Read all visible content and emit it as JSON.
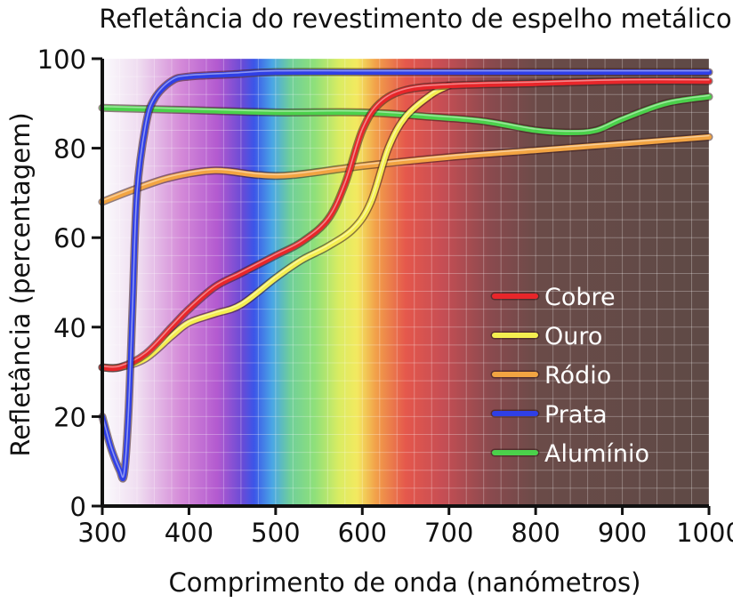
{
  "chart_data": {
    "type": "line",
    "title": "Refletância do revestimento de espelho metálico",
    "xlabel": "Comprimento de onda (nanómetros)",
    "ylabel": "Refletância (percentagem)",
    "xlim": [
      300,
      1000
    ],
    "ylim": [
      0,
      100
    ],
    "xticks": [
      "300",
      "400",
      "500",
      "600",
      "700",
      "800",
      "900",
      "1000"
    ],
    "yticks": [
      "0",
      "20",
      "40",
      "60",
      "80",
      "100"
    ],
    "grid": true,
    "legend_position": "bottom-right",
    "background": "visible light spectrum (violet to red) then dark brown for infrared",
    "series": [
      {
        "name": "Cobre",
        "color": "#e8262a",
        "x": [
          300,
          320,
          350,
          380,
          400,
          430,
          460,
          500,
          530,
          560,
          580,
          600,
          620,
          650,
          700,
          800,
          900,
          1000
        ],
        "y": [
          31,
          31,
          34,
          40,
          44,
          49,
          52,
          56,
          59,
          64,
          72,
          84,
          90,
          93,
          94,
          94.5,
          95,
          95
        ]
      },
      {
        "name": "Ouro",
        "color": "#f4ee50",
        "x": [
          300,
          320,
          350,
          380,
          400,
          430,
          460,
          500,
          530,
          560,
          590,
          610,
          630,
          650,
          680,
          700
        ],
        "y": [
          31,
          31,
          33,
          38,
          41,
          43,
          45,
          51,
          55,
          58,
          62,
          68,
          80,
          87,
          92,
          94
        ]
      },
      {
        "name": "Ródio",
        "color": "#f2a442",
        "x": [
          300,
          340,
          380,
          430,
          480,
          520,
          600,
          700,
          800,
          900,
          1000
        ],
        "y": [
          68,
          71,
          73.5,
          75,
          74,
          74,
          76,
          78,
          79.5,
          81,
          82.5
        ]
      },
      {
        "name": "Prata",
        "color": "#2f3fe6",
        "x": [
          300,
          310,
          320,
          325,
          330,
          335,
          340,
          350,
          360,
          380,
          400,
          450,
          500,
          600,
          700,
          800,
          900,
          1000
        ],
        "y": [
          20,
          13,
          8,
          7,
          20,
          45,
          70,
          85,
          91,
          95,
          96,
          96.5,
          97,
          97,
          97,
          97,
          97,
          97
        ]
      },
      {
        "name": "Alumínio",
        "color": "#4bd14b",
        "x": [
          300,
          400,
          500,
          600,
          680,
          740,
          800,
          840,
          870,
          900,
          950,
          1000
        ],
        "y": [
          89,
          88.5,
          88,
          88,
          87,
          86,
          84,
          83.5,
          84,
          86.5,
          90,
          91.5
        ]
      }
    ]
  }
}
